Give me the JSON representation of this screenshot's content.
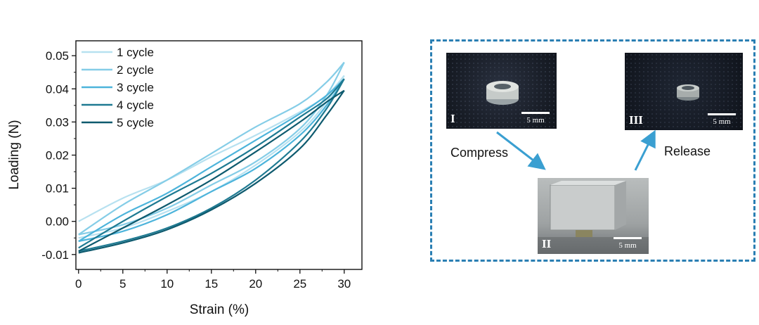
{
  "chart_data": {
    "type": "line",
    "xlabel": "Strain (%)",
    "ylabel": "Loading (N)",
    "xlim": [
      -0.3,
      32
    ],
    "ylim": [
      -0.0145,
      0.0545
    ],
    "xticks": [
      0,
      5,
      10,
      15,
      20,
      25,
      30
    ],
    "xtick_labels": [
      "0",
      "5",
      "10",
      "15",
      "20",
      "25",
      "30"
    ],
    "yticks": [
      -0.01,
      0.0,
      0.01,
      0.02,
      0.03,
      0.04,
      0.05
    ],
    "ytick_labels": [
      "-0.01",
      "0.00",
      "0.01",
      "0.02",
      "0.03",
      "0.04",
      "0.05"
    ],
    "legend_position": "top-left",
    "series": [
      {
        "name": "1 cycle",
        "color": "#b7e1f0",
        "loading": {
          "x": [
            0,
            5,
            10,
            15,
            20,
            25,
            28,
            30
          ],
          "y": [
            0.0,
            0.007,
            0.0125,
            0.0195,
            0.026,
            0.033,
            0.038,
            0.044
          ]
        },
        "unloading": {
          "x": [
            30,
            28,
            25,
            20,
            15,
            10,
            5,
            0
          ],
          "y": [
            0.044,
            0.036,
            0.027,
            0.017,
            0.009,
            0.003,
            -0.002,
            -0.005
          ]
        }
      },
      {
        "name": "2 cycle",
        "color": "#85cde7",
        "loading": {
          "x": [
            0,
            5,
            10,
            15,
            20,
            25,
            28,
            30
          ],
          "y": [
            -0.004,
            0.005,
            0.0125,
            0.0205,
            0.0285,
            0.0355,
            0.042,
            0.048
          ]
        },
        "unloading": {
          "x": [
            30,
            28,
            25,
            20,
            15,
            10,
            5,
            0
          ],
          "y": [
            0.048,
            0.038,
            0.028,
            0.018,
            0.011,
            0.004,
            -0.001,
            -0.004
          ]
        }
      },
      {
        "name": "3 cycle",
        "color": "#4db4db",
        "loading": {
          "x": [
            0,
            5,
            10,
            15,
            20,
            25,
            28,
            30
          ],
          "y": [
            -0.006,
            0.002,
            0.0085,
            0.0165,
            0.0245,
            0.0325,
            0.038,
            0.043
          ]
        },
        "unloading": {
          "x": [
            30,
            28,
            25,
            20,
            15,
            10,
            5,
            0
          ],
          "y": [
            0.043,
            0.035,
            0.026,
            0.016,
            0.009,
            0.002,
            -0.003,
            -0.006
          ]
        }
      },
      {
        "name": "4 cycle",
        "color": "#1e7a92",
        "loading": {
          "x": [
            0,
            5,
            10,
            15,
            20,
            25,
            28,
            30
          ],
          "y": [
            -0.008,
            0.0,
            0.0075,
            0.0145,
            0.0225,
            0.0315,
            0.037,
            0.043
          ]
        },
        "unloading": {
          "x": [
            30,
            28,
            25,
            20,
            15,
            10,
            5,
            0
          ],
          "y": [
            0.043,
            0.034,
            0.024,
            0.0125,
            0.004,
            -0.002,
            -0.006,
            -0.009
          ]
        }
      },
      {
        "name": "5 cycle",
        "color": "#0e5a6e",
        "loading": {
          "x": [
            0,
            5,
            10,
            15,
            20,
            25,
            28,
            30
          ],
          "y": [
            -0.009,
            -0.002,
            0.005,
            0.0125,
            0.021,
            0.03,
            0.036,
            0.0395
          ]
        },
        "unloading": {
          "x": [
            30,
            28,
            25,
            20,
            15,
            10,
            5,
            0
          ],
          "y": [
            0.0395,
            0.032,
            0.022,
            0.0115,
            0.0035,
            -0.0025,
            -0.0065,
            -0.0095
          ]
        }
      }
    ]
  },
  "panel": {
    "border_color": "#2a7fb3",
    "steps": {
      "compress": "Compress",
      "release": "Release"
    },
    "photos": [
      {
        "label": "I",
        "scale": "5 mm"
      },
      {
        "label": "II",
        "scale": "5 mm"
      },
      {
        "label": "III",
        "scale": "5 mm"
      }
    ]
  }
}
